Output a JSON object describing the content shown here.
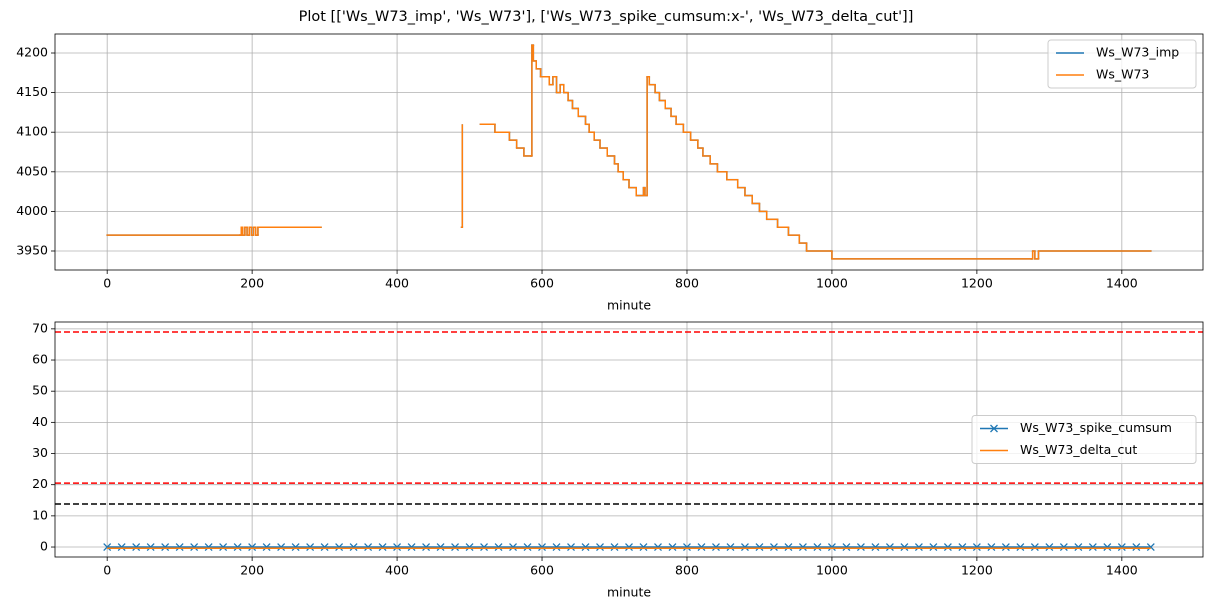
{
  "title": "Plot [['Ws_W73_imp', 'Ws_W73'], ['Ws_W73_spike_cumsum:x-', 'Ws_W73_delta_cut']]",
  "chart_data": [
    {
      "type": "line",
      "drawstyle": "steps-post",
      "xlabel": "minute",
      "grid": true,
      "legend": "upper right",
      "xlim": [
        -72,
        1512
      ],
      "xticks": [
        0,
        200,
        400,
        600,
        800,
        1000,
        1200,
        1400
      ],
      "ylim": [
        3926,
        4224
      ],
      "yticks": [
        3950,
        4000,
        4050,
        4100,
        4150,
        4200
      ],
      "x": [
        0,
        183,
        185,
        187,
        190,
        193,
        196,
        199,
        202,
        205,
        208,
        295,
        296,
        489,
        490,
        491,
        515,
        535,
        555,
        565,
        575,
        585,
        586,
        588,
        592,
        598,
        610,
        615,
        620,
        625,
        630,
        636,
        642,
        650,
        660,
        665,
        672,
        680,
        690,
        700,
        705,
        712,
        720,
        730,
        740,
        742,
        745,
        748,
        756,
        762,
        770,
        778,
        785,
        795,
        805,
        815,
        822,
        832,
        842,
        855,
        870,
        880,
        890,
        900,
        910,
        925,
        940,
        955,
        965,
        1000,
        1275,
        1277,
        1280,
        1285,
        1440
      ],
      "series": [
        {
          "name": "Ws_W73_imp",
          "color": "#1f77b4",
          "values": [
            3970,
            3970,
            3980,
            3970,
            3980,
            3970,
            3980,
            3970,
            3980,
            3970,
            3980,
            3980,
            null,
            3980,
            4110,
            null,
            4110,
            4100,
            4090,
            4080,
            4070,
            4070,
            4210,
            4190,
            4180,
            4170,
            4160,
            4170,
            4150,
            4160,
            4150,
            4140,
            4130,
            4120,
            4110,
            4100,
            4090,
            4080,
            4070,
            4060,
            4050,
            4040,
            4030,
            4020,
            4030,
            4020,
            4170,
            4160,
            4150,
            4140,
            4130,
            4120,
            4110,
            4100,
            4090,
            4080,
            4070,
            4060,
            4050,
            4040,
            4030,
            4020,
            4010,
            4000,
            3990,
            3980,
            3970,
            3960,
            3950,
            3940,
            3940,
            3950,
            3940,
            3950,
            3950
          ]
        },
        {
          "name": "Ws_W73",
          "color": "#ff7f0e",
          "values": [
            3970,
            3970,
            3980,
            3970,
            3980,
            3970,
            3980,
            3970,
            3980,
            3970,
            3980,
            3980,
            null,
            3980,
            4110,
            null,
            4110,
            4100,
            4090,
            4080,
            4070,
            4070,
            4210,
            4190,
            4180,
            4170,
            4160,
            4170,
            4150,
            4160,
            4150,
            4140,
            4130,
            4120,
            4110,
            4100,
            4090,
            4080,
            4070,
            4060,
            4050,
            4040,
            4030,
            4020,
            4030,
            4020,
            4170,
            4160,
            4150,
            4140,
            4130,
            4120,
            4110,
            4100,
            4090,
            4080,
            4070,
            4060,
            4050,
            4040,
            4030,
            4020,
            4010,
            4000,
            3990,
            3980,
            3970,
            3960,
            3950,
            3940,
            3940,
            3950,
            3940,
            3950,
            3950
          ]
        }
      ]
    },
    {
      "type": "line",
      "xlabel": "minute",
      "grid": true,
      "legend": "center right",
      "xlim": [
        -72,
        1512
      ],
      "xticks": [
        0,
        200,
        400,
        600,
        800,
        1000,
        1200,
        1400
      ],
      "ylim": [
        -3.2,
        72.2
      ],
      "yticks": [
        0,
        10,
        20,
        30,
        40,
        50,
        60,
        70
      ],
      "hlines": [
        {
          "value": 69,
          "color": "red"
        },
        {
          "value": 20.5,
          "color": "red"
        },
        {
          "value": 13.8,
          "color": "black"
        }
      ],
      "series": [
        {
          "name": "Ws_W73_spike_cumsum",
          "color": "#1f77b4",
          "marker": "x",
          "x": [
            0,
            20,
            40,
            60,
            80,
            100,
            120,
            140,
            160,
            180,
            200,
            220,
            240,
            260,
            280,
            300,
            320,
            340,
            360,
            380,
            400,
            420,
            440,
            460,
            480,
            500,
            520,
            540,
            560,
            580,
            600,
            620,
            640,
            660,
            680,
            700,
            720,
            740,
            760,
            780,
            800,
            820,
            840,
            860,
            880,
            900,
            920,
            940,
            960,
            980,
            1000,
            1020,
            1040,
            1060,
            1080,
            1100,
            1120,
            1140,
            1160,
            1180,
            1200,
            1220,
            1240,
            1260,
            1280,
            1300,
            1320,
            1340,
            1360,
            1380,
            1400,
            1420,
            1440
          ],
          "values": [
            0,
            0,
            0,
            0,
            0,
            0,
            0,
            0,
            0,
            0,
            0,
            0,
            0,
            0,
            0,
            0,
            0,
            0,
            0,
            0,
            0,
            0,
            0,
            0,
            0,
            0,
            0,
            0,
            0,
            0,
            0,
            0,
            0,
            0,
            0,
            0,
            0,
            0,
            0,
            0,
            0,
            0,
            0,
            0,
            0,
            0,
            0,
            0,
            0,
            0,
            0,
            0,
            0,
            0,
            0,
            0,
            0,
            0,
            0,
            0,
            0,
            0,
            0,
            0,
            0,
            0,
            0,
            0,
            0,
            0,
            0,
            0,
            0
          ]
        },
        {
          "name": "Ws_W73_delta_cut",
          "color": "#ff7f0e",
          "x": [
            0,
            1440
          ],
          "values": [
            -0.4,
            -0.4
          ]
        }
      ]
    }
  ]
}
